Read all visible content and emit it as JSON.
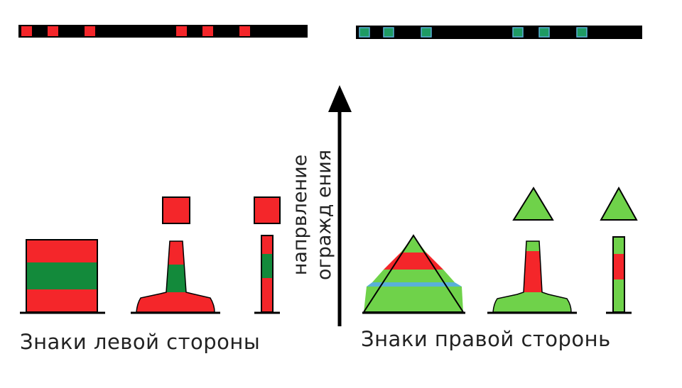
{
  "colors": {
    "red": "#f4262a",
    "dark_green": "#138a3b",
    "light_green": "#6fd24a",
    "strip_square_green": "#1f9b63",
    "strip_square_border": "#5ab0d8",
    "black": "#000000"
  },
  "left": {
    "caption": "Знаки левой стороны",
    "strip_squares": 6,
    "signs": [
      {
        "name": "striped-square-sign",
        "bands": [
          "red",
          "dark_green",
          "red"
        ]
      },
      {
        "name": "cone-buoy-with-square-topmark",
        "bands": [
          "red",
          "dark_green",
          "red"
        ]
      },
      {
        "name": "spar-buoy-with-square-topmark",
        "bands": [
          "red",
          "dark_green",
          "red"
        ]
      }
    ]
  },
  "right": {
    "caption": "Знаки правой сторонь",
    "strip_squares": 6,
    "signs": [
      {
        "name": "striped-triangle-sign",
        "bands": [
          "light_green",
          "red",
          "light_green"
        ]
      },
      {
        "name": "cone-buoy-with-triangle-topmark",
        "bands": [
          "light_green",
          "red",
          "light_green"
        ]
      },
      {
        "name": "spar-buoy-with-triangle-topmark",
        "bands": [
          "light_green",
          "red",
          "light_green"
        ]
      }
    ]
  },
  "direction_label": {
    "line1": "напрвление",
    "line2": "огражд ения"
  }
}
